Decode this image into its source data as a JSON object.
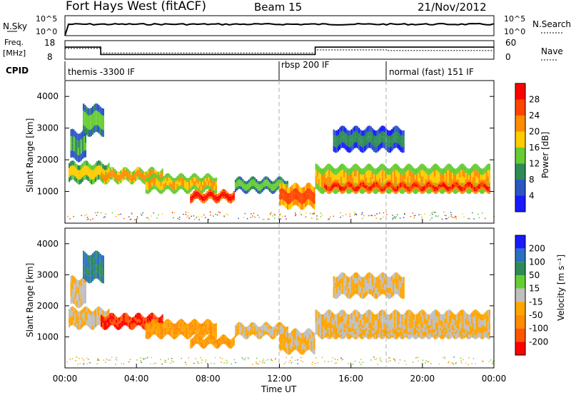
{
  "header": {
    "station": "Fort Hays West (fitACF)",
    "beam": "Beam 15",
    "date": "21/Nov/2012"
  },
  "noise_panel": {
    "left_label": "N.Sky",
    "left_ticks": [
      "10^5",
      "10^0"
    ],
    "right_ticks": [
      "10^5",
      "10^0"
    ],
    "right_label": "N.Search"
  },
  "freq_panel": {
    "left_label_1": "Freq.",
    "left_label_2": "[MHz]",
    "left_ticks": [
      "18",
      "8"
    ],
    "right_ticks": [
      "60",
      "0"
    ],
    "right_label": "Nave"
  },
  "cpid": {
    "label": "CPID",
    "segments": [
      {
        "start": 0,
        "end": 12,
        "label": "themis -3300 IF"
      },
      {
        "start": 12,
        "end": 18,
        "label": "rbsp 200 IF"
      },
      {
        "start": 18,
        "end": 24,
        "label": "normal (fast) 151 IF"
      }
    ]
  },
  "power_panel": {
    "ylabel": "Slant Range [km]",
    "yticks": [
      "1000",
      "2000",
      "3000",
      "4000"
    ],
    "colorbar_label": "Power [dB]",
    "colorbar_ticks": [
      "4",
      "8",
      "12",
      "16",
      "20",
      "24",
      "28"
    ],
    "colors": [
      "#1a1aff",
      "#2a56c4",
      "#2e8b57",
      "#66cc33",
      "#ffcc00",
      "#ff8c00",
      "#ff4500",
      "#ff0000"
    ]
  },
  "velocity_panel": {
    "ylabel": "Slant Range [km]",
    "yticks": [
      "1000",
      "2000",
      "3000",
      "4000"
    ],
    "colorbar_label": "Velocity [m s⁻¹]",
    "colorbar_ticks": [
      "200",
      "100",
      "50",
      "15",
      "-15",
      "-50",
      "-100",
      "-200"
    ],
    "colors": [
      "#1a1aff",
      "#2a70c0",
      "#2e8b57",
      "#66cc33",
      "#bfbfbf",
      "#ffa500",
      "#ff8c00",
      "#ff5500",
      "#ff0000"
    ]
  },
  "xaxis": {
    "label": "Time UT",
    "ticks": [
      "00:00",
      "04:00",
      "08:00",
      "12:00",
      "16:00",
      "20:00",
      "00:00"
    ]
  },
  "chart_data": {
    "type": "heatmap",
    "x_range_hours": [
      0,
      24
    ],
    "y_range_km": [
      0,
      4500
    ],
    "noise_sky_level": 2.5,
    "freq_mhz": [
      {
        "t": 0,
        "v": 14.5
      },
      {
        "t": 2,
        "v": 10.5
      },
      {
        "t": 14,
        "v": 14.5
      },
      {
        "t": 24,
        "v": 14.5
      }
    ],
    "nave": [
      {
        "t": 0,
        "v": 35
      },
      {
        "t": 2,
        "v": 20
      },
      {
        "t": 14,
        "v": 30
      },
      {
        "t": 18,
        "v": 28
      },
      {
        "t": 24,
        "v": 28
      }
    ],
    "echo_bands": [
      {
        "t0": 0.2,
        "t1": 2.5,
        "r0": 1300,
        "r1": 1900,
        "power": 14,
        "velocity": -15
      },
      {
        "t0": 0.3,
        "t1": 1.2,
        "r0": 2000,
        "r1": 2900,
        "power": 8,
        "velocity": -15
      },
      {
        "t0": 1.0,
        "t1": 2.2,
        "r0": 2800,
        "r1": 3700,
        "power": 10,
        "velocity": 100
      },
      {
        "t0": 2.0,
        "t1": 5.5,
        "r0": 1300,
        "r1": 1700,
        "power": 18,
        "velocity": -200
      },
      {
        "t0": 4.5,
        "t1": 8.5,
        "r0": 1000,
        "r1": 1500,
        "power": 16,
        "velocity": -50
      },
      {
        "t0": 7.0,
        "t1": 9.5,
        "r0": 700,
        "r1": 1000,
        "power": 26,
        "velocity": -50
      },
      {
        "t0": 9.5,
        "t1": 12.5,
        "r0": 1000,
        "r1": 1400,
        "power": 10,
        "velocity": -15
      },
      {
        "t0": 12.0,
        "t1": 14.0,
        "r0": 500,
        "r1": 1200,
        "power": 22,
        "velocity": -15
      },
      {
        "t0": 14.0,
        "t1": 23.8,
        "r0": 1000,
        "r1": 1800,
        "power": 16,
        "velocity": -15
      },
      {
        "t0": 14.5,
        "t1": 23.8,
        "r0": 1000,
        "r1": 1300,
        "power": 24,
        "velocity": -15
      },
      {
        "t0": 15.0,
        "t1": 19.0,
        "r0": 2300,
        "r1": 3000,
        "power": 6,
        "velocity": -15
      }
    ]
  }
}
